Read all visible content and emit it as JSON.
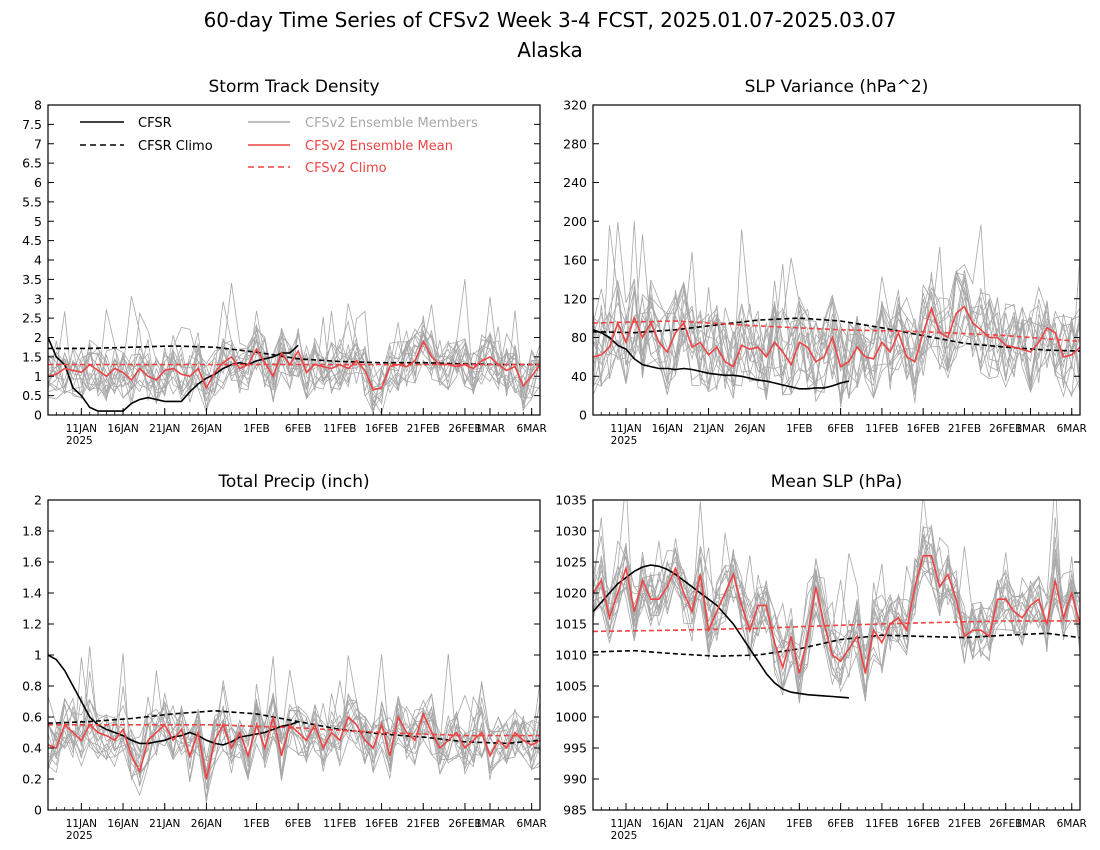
{
  "title": "60-day Time Series of CFSv2 Week 3-4 FCST, 2025.01.07-2025.03.07",
  "subtitle": "Alaska",
  "colors": {
    "cfsr": "#000000",
    "ensemble_members": "#a8a8a8",
    "ensemble_mean": "#ee4444"
  },
  "legend": {
    "cfsr": "CFSR",
    "cfsr_climo": "CFSR Climo",
    "members": "CFSv2 Ensemble Members",
    "mean": "CFSv2 Ensemble Mean",
    "cfsv2_climo": "CFSv2 Climo"
  },
  "x_axis": {
    "ticks": [
      "11JAN",
      "16JAN",
      "21JAN",
      "26JAN",
      "1FEB",
      "6FEB",
      "11FEB",
      "16FEB",
      "21FEB",
      "26FEB",
      "1MAR",
      "6MAR"
    ],
    "tick_days": [
      4,
      9,
      14,
      19,
      25,
      30,
      35,
      40,
      45,
      50,
      53,
      58
    ],
    "year_label": "2025",
    "range": [
      0,
      59
    ]
  },
  "chart_data": [
    {
      "type": "line",
      "title": "Storm Track Density",
      "ylim": [
        0,
        8
      ],
      "yticks": [
        "0",
        "0.5",
        "1",
        "1.5",
        "2",
        "2.5",
        "3",
        "3.5",
        "4",
        "4.5",
        "5",
        "5.5",
        "6",
        "6.5",
        "7",
        "7.5",
        "8"
      ],
      "grid": false,
      "legend_placement": "top-left",
      "series": [
        {
          "name": "CFSR",
          "style": "solid",
          "color": "#000000",
          "x": [
            0,
            1,
            2,
            3,
            4,
            5,
            6,
            7,
            8,
            9,
            10,
            11,
            12,
            13,
            14,
            15,
            16,
            17,
            18,
            19,
            20,
            21,
            22,
            23,
            24,
            25,
            26,
            27,
            28,
            29,
            30
          ],
          "values": [
            2.0,
            1.5,
            1.3,
            0.7,
            0.5,
            0.2,
            0.1,
            0.1,
            0.1,
            0.1,
            0.3,
            0.4,
            0.45,
            0.4,
            0.35,
            0.35,
            0.35,
            0.6,
            0.8,
            0.95,
            1.05,
            1.2,
            1.3,
            1.35,
            1.3,
            1.4,
            1.45,
            1.5,
            1.6,
            1.6,
            1.8
          ]
        },
        {
          "name": "CFSR Climo",
          "style": "dashed",
          "color": "#000000",
          "x": [
            0,
            5,
            10,
            15,
            20,
            25,
            30,
            35,
            40,
            45,
            50,
            55,
            59
          ],
          "values": [
            1.72,
            1.72,
            1.75,
            1.78,
            1.75,
            1.62,
            1.45,
            1.38,
            1.35,
            1.35,
            1.32,
            1.3,
            1.3
          ]
        },
        {
          "name": "CFSv2 Ensemble Mean",
          "style": "solid",
          "color": "#ee4444",
          "x": [
            0,
            1,
            2,
            3,
            4,
            5,
            6,
            7,
            8,
            9,
            10,
            11,
            12,
            13,
            14,
            15,
            16,
            17,
            18,
            19,
            20,
            21,
            22,
            23,
            24,
            25,
            26,
            27,
            28,
            29,
            30,
            31,
            32,
            33,
            34,
            35,
            36,
            37,
            38,
            39,
            40,
            41,
            42,
            43,
            44,
            45,
            46,
            47,
            48,
            49,
            50,
            51,
            52,
            53,
            54,
            55,
            56,
            57,
            58,
            59
          ],
          "values": [
            1.0,
            1.05,
            1.2,
            1.15,
            1.1,
            1.3,
            1.15,
            1.0,
            1.2,
            1.1,
            0.9,
            1.2,
            1.0,
            0.9,
            1.15,
            1.2,
            1.05,
            1.0,
            1.2,
            0.7,
            1.1,
            1.35,
            1.5,
            1.2,
            1.3,
            1.7,
            1.35,
            1.0,
            1.6,
            1.3,
            1.65,
            1.1,
            1.3,
            1.25,
            1.2,
            1.3,
            1.2,
            1.4,
            1.15,
            0.65,
            0.7,
            1.25,
            1.3,
            1.25,
            1.4,
            1.9,
            1.5,
            1.3,
            1.3,
            1.25,
            1.3,
            1.2,
            1.4,
            1.5,
            1.3,
            1.15,
            1.25,
            0.75,
            1.0,
            1.3
          ]
        },
        {
          "name": "CFSv2 Climo",
          "style": "dashed",
          "color": "#ee4444",
          "x": [
            0,
            10,
            20,
            30,
            40,
            50,
            59
          ],
          "values": [
            1.3,
            1.3,
            1.3,
            1.3,
            1.3,
            1.3,
            1.3
          ]
        }
      ]
    },
    {
      "type": "line",
      "title": "SLP Variance (hPa^2)",
      "ylim": [
        0,
        320
      ],
      "yticks": [
        "0",
        "40",
        "80",
        "120",
        "160",
        "200",
        "240",
        "280",
        "320"
      ],
      "grid": false,
      "series": [
        {
          "name": "CFSR",
          "style": "solid",
          "color": "#000000",
          "x": [
            0,
            1,
            2,
            3,
            4,
            5,
            6,
            7,
            8,
            9,
            10,
            11,
            12,
            13,
            14,
            15,
            16,
            17,
            18,
            19,
            20,
            21,
            22,
            23,
            24,
            25,
            26,
            27,
            28,
            29,
            30,
            31
          ],
          "values": [
            88,
            85,
            80,
            72,
            68,
            58,
            52,
            50,
            48,
            48,
            47,
            48,
            47,
            45,
            43,
            42,
            41,
            41,
            40,
            38,
            36,
            35,
            33,
            31,
            29,
            27,
            27,
            28,
            28,
            30,
            33,
            35
          ]
        },
        {
          "name": "CFSR Climo",
          "style": "dashed",
          "color": "#000000",
          "x": [
            0,
            5,
            10,
            15,
            20,
            25,
            30,
            35,
            40,
            45,
            50,
            55,
            59
          ],
          "values": [
            86,
            85,
            88,
            93,
            98,
            100,
            97,
            90,
            82,
            74,
            70,
            67,
            66
          ]
        },
        {
          "name": "CFSv2 Ensemble Mean",
          "style": "solid",
          "color": "#ee4444",
          "x": [
            0,
            1,
            2,
            3,
            4,
            5,
            6,
            7,
            8,
            9,
            10,
            11,
            12,
            13,
            14,
            15,
            16,
            17,
            18,
            19,
            20,
            21,
            22,
            23,
            24,
            25,
            26,
            27,
            28,
            29,
            30,
            31,
            32,
            33,
            34,
            35,
            36,
            37,
            38,
            39,
            40,
            41,
            42,
            43,
            44,
            45,
            46,
            47,
            48,
            49,
            50,
            51,
            52,
            53,
            54,
            55,
            56,
            57,
            58,
            59
          ],
          "values": [
            60,
            62,
            70,
            95,
            75,
            100,
            80,
            95,
            75,
            65,
            85,
            95,
            70,
            75,
            62,
            70,
            55,
            50,
            72,
            68,
            70,
            60,
            75,
            65,
            52,
            75,
            70,
            55,
            60,
            80,
            50,
            55,
            70,
            60,
            58,
            75,
            65,
            85,
            60,
            55,
            85,
            110,
            85,
            80,
            105,
            112,
            95,
            88,
            80,
            80,
            72,
            70,
            68,
            65,
            75,
            90,
            85,
            60,
            62,
            70
          ]
        },
        {
          "name": "CFSv2 Climo",
          "style": "dashed",
          "color": "#ee4444",
          "x": [
            0,
            10,
            20,
            30,
            40,
            50,
            59
          ],
          "values": [
            95,
            97,
            92,
            88,
            86,
            82,
            76
          ]
        }
      ]
    },
    {
      "type": "line",
      "title": "Total Precip (inch)",
      "ylim": [
        0,
        2
      ],
      "yticks": [
        "0",
        "0.2",
        "0.4",
        "0.6",
        "0.8",
        "1",
        "1.2",
        "1.4",
        "1.6",
        "1.8",
        "2"
      ],
      "grid": false,
      "series": [
        {
          "name": "CFSR",
          "style": "solid",
          "color": "#000000",
          "x": [
            0,
            1,
            2,
            3,
            4,
            5,
            6,
            7,
            8,
            9,
            10,
            11,
            12,
            13,
            14,
            15,
            16,
            17,
            18,
            19,
            20,
            21,
            22,
            23,
            24,
            25,
            26,
            27,
            28,
            29,
            30
          ],
          "values": [
            1.0,
            0.97,
            0.9,
            0.8,
            0.7,
            0.6,
            0.55,
            0.52,
            0.5,
            0.48,
            0.45,
            0.43,
            0.43,
            0.44,
            0.45,
            0.47,
            0.48,
            0.5,
            0.48,
            0.45,
            0.43,
            0.42,
            0.44,
            0.47,
            0.48,
            0.49,
            0.5,
            0.52,
            0.54,
            0.55,
            0.57
          ]
        },
        {
          "name": "CFSR Climo",
          "style": "dashed",
          "color": "#000000",
          "x": [
            0,
            5,
            10,
            15,
            20,
            25,
            30,
            35,
            40,
            45,
            50,
            55,
            59
          ],
          "values": [
            0.56,
            0.57,
            0.59,
            0.62,
            0.64,
            0.62,
            0.57,
            0.52,
            0.49,
            0.47,
            0.44,
            0.43,
            0.45
          ]
        },
        {
          "name": "CFSv2 Ensemble Mean",
          "style": "solid",
          "color": "#ee4444",
          "x": [
            0,
            1,
            2,
            3,
            4,
            5,
            6,
            7,
            8,
            9,
            10,
            11,
            12,
            13,
            14,
            15,
            16,
            17,
            18,
            19,
            20,
            21,
            22,
            23,
            24,
            25,
            26,
            27,
            28,
            29,
            30,
            31,
            32,
            33,
            34,
            35,
            36,
            37,
            38,
            39,
            40,
            41,
            42,
            43,
            44,
            45,
            46,
            47,
            48,
            49,
            50,
            51,
            52,
            53,
            54,
            55,
            56,
            57,
            58,
            59
          ],
          "values": [
            0.42,
            0.4,
            0.55,
            0.5,
            0.45,
            0.55,
            0.5,
            0.48,
            0.45,
            0.52,
            0.35,
            0.25,
            0.45,
            0.5,
            0.55,
            0.45,
            0.52,
            0.35,
            0.5,
            0.2,
            0.45,
            0.55,
            0.4,
            0.5,
            0.35,
            0.55,
            0.4,
            0.6,
            0.35,
            0.55,
            0.5,
            0.45,
            0.55,
            0.4,
            0.5,
            0.45,
            0.6,
            0.55,
            0.45,
            0.4,
            0.55,
            0.35,
            0.6,
            0.5,
            0.45,
            0.62,
            0.5,
            0.4,
            0.45,
            0.5,
            0.4,
            0.45,
            0.5,
            0.35,
            0.45,
            0.4,
            0.5,
            0.45,
            0.42,
            0.45
          ]
        },
        {
          "name": "CFSv2 Climo",
          "style": "dashed",
          "color": "#ee4444",
          "x": [
            0,
            10,
            20,
            30,
            40,
            50,
            59
          ],
          "values": [
            0.55,
            0.55,
            0.55,
            0.53,
            0.5,
            0.48,
            0.48
          ]
        }
      ]
    },
    {
      "type": "line",
      "title": "Mean SLP (hPa)",
      "ylim": [
        985,
        1035
      ],
      "yticks": [
        "985",
        "990",
        "995",
        "1000",
        "1005",
        "1010",
        "1015",
        "1020",
        "1025",
        "1030",
        "1035"
      ],
      "grid": false,
      "series": [
        {
          "name": "CFSR",
          "style": "solid",
          "color": "#000000",
          "x": [
            0,
            1,
            2,
            3,
            4,
            5,
            6,
            7,
            8,
            9,
            10,
            11,
            12,
            13,
            14,
            15,
            16,
            17,
            18,
            19,
            20,
            21,
            22,
            23,
            24,
            25,
            26,
            27,
            28,
            29,
            30,
            31
          ],
          "values": [
            1017,
            1018.5,
            1020,
            1021.5,
            1022.5,
            1023.5,
            1024.2,
            1024.5,
            1024.3,
            1023.8,
            1023,
            1022,
            1021,
            1020,
            1019,
            1018,
            1016.5,
            1015,
            1013,
            1011,
            1009,
            1007,
            1005.5,
            1004.5,
            1004,
            1003.8,
            1003.6,
            1003.5,
            1003.4,
            1003.3,
            1003.2,
            1003.1
          ]
        },
        {
          "name": "CFSR Climo",
          "style": "dashed",
          "color": "#000000",
          "x": [
            0,
            5,
            10,
            15,
            20,
            25,
            30,
            35,
            40,
            45,
            50,
            55,
            59
          ],
          "values": [
            1010.5,
            1010.7,
            1010.2,
            1009.8,
            1010,
            1011,
            1012.5,
            1013.2,
            1013,
            1012.8,
            1013.2,
            1013.5,
            1012.8
          ]
        },
        {
          "name": "CFSv2 Ensemble Mean",
          "style": "solid",
          "color": "#ee4444",
          "x": [
            0,
            1,
            2,
            3,
            4,
            5,
            6,
            7,
            8,
            9,
            10,
            11,
            12,
            13,
            14,
            15,
            16,
            17,
            18,
            19,
            20,
            21,
            22,
            23,
            24,
            25,
            26,
            27,
            28,
            29,
            30,
            31,
            32,
            33,
            34,
            35,
            36,
            37,
            38,
            39,
            40,
            41,
            42,
            43,
            44,
            45,
            46,
            47,
            48,
            49,
            50,
            51,
            52,
            53,
            54,
            55,
            56,
            57,
            58,
            59
          ],
          "values": [
            1020,
            1022,
            1016,
            1020,
            1024,
            1017,
            1022,
            1019,
            1019,
            1021,
            1024,
            1020,
            1017,
            1023,
            1014,
            1017,
            1020,
            1023,
            1018,
            1014,
            1018,
            1018,
            1012,
            1008,
            1013,
            1007,
            1013,
            1021,
            1015,
            1010,
            1009,
            1011,
            1013,
            1007,
            1014,
            1012,
            1015,
            1016,
            1014,
            1021,
            1026,
            1026,
            1021,
            1023,
            1019,
            1013,
            1014,
            1014,
            1013,
            1019,
            1019,
            1017,
            1016,
            1018,
            1019,
            1015,
            1022,
            1016,
            1020,
            1015
          ]
        },
        {
          "name": "CFSv2 Climo",
          "style": "dashed",
          "color": "#ee4444",
          "x": [
            0,
            10,
            20,
            30,
            40,
            50,
            59
          ],
          "values": [
            1013.8,
            1014,
            1014.3,
            1014.8,
            1015.2,
            1015.5,
            1015.5
          ]
        }
      ]
    }
  ]
}
